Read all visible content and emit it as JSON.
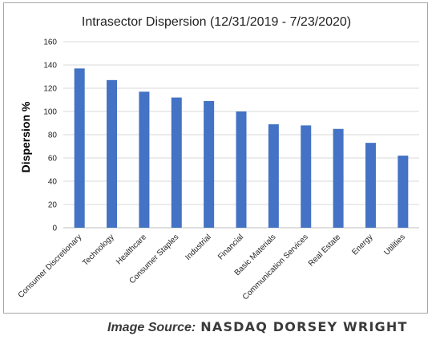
{
  "chart_data": {
    "type": "bar",
    "title": "Intrasector Dispersion (12/31/2019 - 7/23/2020)",
    "xlabel": "",
    "ylabel": "Dispersion %",
    "categories": [
      "Consumer Discretionary",
      "Technology",
      "Healthcare",
      "Consumer Staples",
      "Industrial",
      "Financial",
      "Basic Materials",
      "Communication Services",
      "Real Estate",
      "Energy",
      "Utilities"
    ],
    "values": [
      137,
      127,
      117,
      112,
      109,
      100,
      89,
      88,
      85,
      73,
      62
    ],
    "ylim": [
      0,
      160
    ],
    "yticks": [
      0,
      20,
      40,
      60,
      80,
      100,
      120,
      140,
      160
    ],
    "grid": true,
    "legend": "none",
    "bar_color": "#4472c4"
  },
  "source": {
    "prefix": "Image Source:",
    "brand": "NASDAQ DORSEY WRIGHT"
  }
}
